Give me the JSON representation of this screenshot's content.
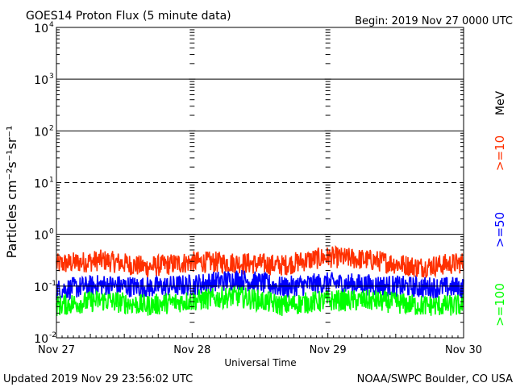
{
  "header": {
    "title": "GOES14 Proton Flux (5 minute data)",
    "begin": "Begin: 2019 Nov 27 0000 UTC"
  },
  "footer": {
    "updated": "Updated 2019 Nov 29 23:56:02 UTC",
    "credit": "NOAA/SWPC Boulder, CO USA"
  },
  "chart_data": {
    "type": "line",
    "title": "GOES14 Proton Flux (5 minute data)",
    "xlabel": "Universal Time",
    "ylabel": "Particles cm⁻²s⁻¹sr⁻¹",
    "y_scale": "log",
    "ylim": [
      0.01,
      10000
    ],
    "y_ticks": [
      0.01,
      0.1,
      1,
      10,
      100,
      1000,
      10000
    ],
    "y_tick_labels": [
      {
        "base": "10",
        "exp": "-2"
      },
      {
        "base": "10",
        "exp": "-1"
      },
      {
        "base": "10",
        "exp": "0"
      },
      {
        "base": "10",
        "exp": "1"
      },
      {
        "base": "10",
        "exp": "2"
      },
      {
        "base": "10",
        "exp": "3"
      },
      {
        "base": "10",
        "exp": "4"
      }
    ],
    "x_tick_labels": [
      "Nov 27",
      "Nov 28",
      "Nov 29",
      "Nov 30"
    ],
    "xlim_days": [
      0,
      3
    ],
    "dashed_threshold": 10,
    "energy_unit": "MeV",
    "series": [
      {
        "name": ">=10",
        "color": "#ff3000",
        "baseline": 0.26,
        "values": [
          0.25,
          0.3,
          0.22,
          0.28,
          0.27,
          0.24,
          0.35,
          0.3,
          0.22,
          0.27
        ]
      },
      {
        "name": ">=50",
        "color": "#0000ff",
        "baseline": 0.09,
        "values": [
          0.08,
          0.1,
          0.09,
          0.1,
          0.13,
          0.09,
          0.11,
          0.1,
          0.09,
          0.09
        ]
      },
      {
        "name": ">=100",
        "color": "#00ff00",
        "baseline": 0.04,
        "values": [
          0.04,
          0.05,
          0.04,
          0.05,
          0.06,
          0.04,
          0.05,
          0.05,
          0.04,
          0.04
        ]
      }
    ]
  }
}
